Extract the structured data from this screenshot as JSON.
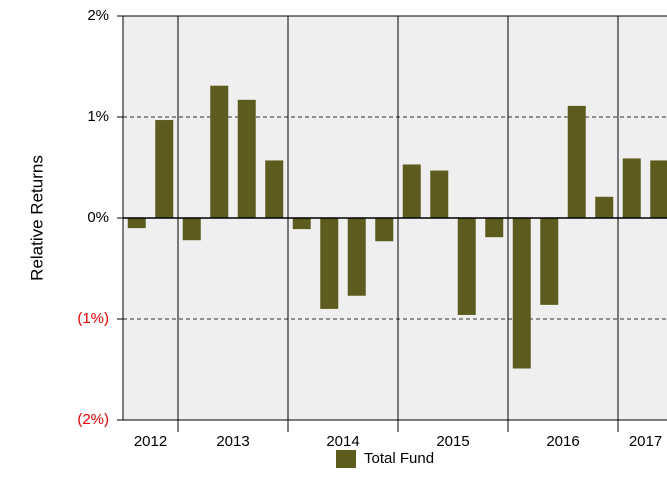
{
  "chart_data": {
    "type": "bar",
    "y_label": "Relative Returns",
    "categories": [
      "2012",
      null,
      "2013",
      null,
      null,
      null,
      "2014",
      null,
      null,
      null,
      "2015",
      null,
      null,
      null,
      "2016",
      null,
      null,
      null,
      "2017",
      null
    ],
    "series": [
      {
        "name": "Total Fund",
        "color": "#5c5c1e",
        "values": [
          -0.1,
          0.97,
          -0.22,
          1.31,
          1.17,
          0.57,
          -0.11,
          -0.9,
          -0.77,
          -0.23,
          0.53,
          0.47,
          -0.96,
          -0.19,
          -1.49,
          -0.86,
          1.11,
          0.21,
          0.59,
          0.57
        ]
      }
    ],
    "ylim": [
      -2,
      2
    ],
    "yticks": [
      {
        "value": -2,
        "label": "(2%)"
      },
      {
        "value": -1,
        "label": "(1%)"
      },
      {
        "value": 0,
        "label": "0%"
      },
      {
        "value": 1,
        "label": "1%"
      },
      {
        "value": 2,
        "label": "2%"
      }
    ],
    "negative_tick_color": "#e00000",
    "grid": true,
    "legend": "bottom"
  }
}
